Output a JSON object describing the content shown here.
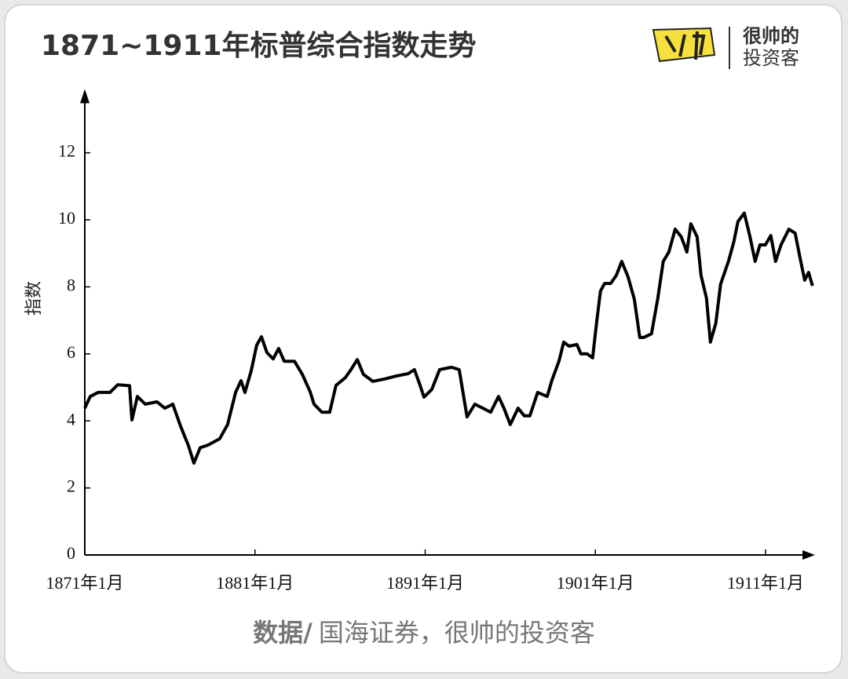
{
  "header": {
    "brand": [
      "很帅的",
      "投资客"
    ]
  },
  "chart_data": {
    "type": "line",
    "title": "1871~1911年标普综合指数走势",
    "y_label": "指数",
    "color": "#000000",
    "xlim": [
      1871,
      1914
    ],
    "ylim": [
      0,
      13.9
    ],
    "xticks": [
      {
        "value": 1871,
        "label": "1871年1月"
      },
      {
        "value": 1881,
        "label": "1881年1月"
      },
      {
        "value": 1891,
        "label": "1891年1月"
      },
      {
        "value": 1901,
        "label": "1901年1月"
      },
      {
        "value": 1911,
        "label": "1911年1月"
      }
    ],
    "yticks": [
      0,
      2,
      4,
      6,
      8,
      10,
      12
    ],
    "x": [
      1871.0,
      1871.32,
      1871.78,
      1872.48,
      1872.94,
      1873.63,
      1873.77,
      1874.09,
      1874.55,
      1875.24,
      1875.7,
      1876.17,
      1876.63,
      1877.09,
      1877.41,
      1877.78,
      1878.24,
      1878.93,
      1879.39,
      1879.86,
      1880.18,
      1880.41,
      1880.78,
      1881.1,
      1881.38,
      1881.7,
      1882.07,
      1882.39,
      1882.72,
      1883.32,
      1883.78,
      1884.24,
      1884.47,
      1884.93,
      1885.39,
      1885.76,
      1886.31,
      1886.64,
      1887.01,
      1887.37,
      1887.93,
      1888.62,
      1889.31,
      1890.0,
      1890.37,
      1890.7,
      1890.93,
      1891.39,
      1891.85,
      1892.54,
      1893.0,
      1893.46,
      1893.92,
      1894.39,
      1894.85,
      1895.31,
      1895.63,
      1896.0,
      1896.46,
      1896.83,
      1897.15,
      1897.61,
      1898.17,
      1898.44,
      1898.86,
      1899.14,
      1899.46,
      1899.92,
      1900.15,
      1900.52,
      1900.84,
      1901.07,
      1901.3,
      1901.54,
      1901.9,
      1902.23,
      1902.55,
      1902.92,
      1903.29,
      1903.61,
      1903.84,
      1904.3,
      1904.67,
      1904.99,
      1905.32,
      1905.69,
      1906.05,
      1906.38,
      1906.61,
      1906.98,
      1907.21,
      1907.53,
      1907.76,
      1908.08,
      1908.36,
      1908.82,
      1909.14,
      1909.38,
      1909.75,
      1910.07,
      1910.39,
      1910.67,
      1910.99,
      1911.31,
      1911.59,
      1911.91,
      1912.37,
      1912.74,
      1913.07,
      1913.3,
      1913.53,
      1913.76
    ],
    "values": [
      4.38,
      4.73,
      4.85,
      4.85,
      5.08,
      5.05,
      4.03,
      4.73,
      4.5,
      4.57,
      4.38,
      4.5,
      3.84,
      3.26,
      2.74,
      3.2,
      3.28,
      3.47,
      3.89,
      4.85,
      5.2,
      4.85,
      5.5,
      6.26,
      6.51,
      6.04,
      5.85,
      6.16,
      5.78,
      5.78,
      5.39,
      4.87,
      4.5,
      4.26,
      4.26,
      5.06,
      5.29,
      5.53,
      5.83,
      5.39,
      5.18,
      5.25,
      5.34,
      5.41,
      5.53,
      5.06,
      4.71,
      4.94,
      5.53,
      5.6,
      5.53,
      4.12,
      4.5,
      4.38,
      4.26,
      4.73,
      4.38,
      3.89,
      4.38,
      4.15,
      4.15,
      4.85,
      4.73,
      5.2,
      5.78,
      6.35,
      6.23,
      6.28,
      6.0,
      6.0,
      5.88,
      6.92,
      7.87,
      8.1,
      8.1,
      8.34,
      8.76,
      8.3,
      7.63,
      6.49,
      6.49,
      6.6,
      7.66,
      8.76,
      9.04,
      9.72,
      9.49,
      9.04,
      9.88,
      9.49,
      8.34,
      7.66,
      6.35,
      6.92,
      8.08,
      8.76,
      9.35,
      9.95,
      10.2,
      9.53,
      8.76,
      9.25,
      9.25,
      9.53,
      8.76,
      9.25,
      9.72,
      9.6,
      8.76,
      8.2,
      8.43,
      8.03
    ]
  },
  "source": {
    "label": "数据/",
    "text": "国海证券，很帅的投资客"
  }
}
